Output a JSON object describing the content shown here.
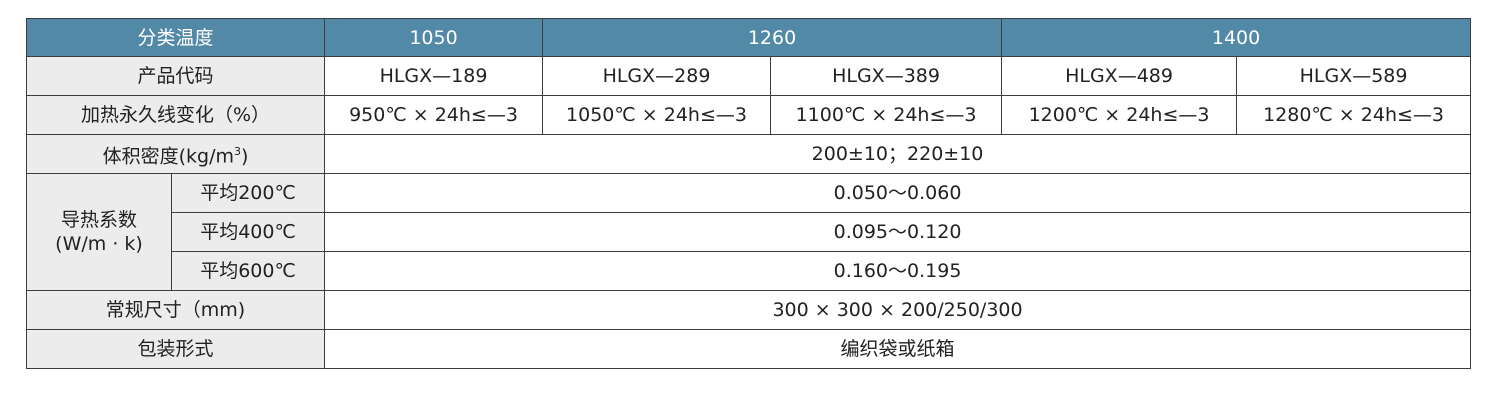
{
  "table": {
    "header": {
      "label": "分类温度",
      "groups": [
        "1050",
        "1260",
        "1400"
      ]
    },
    "product_code": {
      "label": "产品代码",
      "values": [
        "HLGX—189",
        "HLGX—289",
        "HLGX—389",
        "HLGX—489",
        "HLGX—589"
      ]
    },
    "shrinkage": {
      "label": "加热永久线变化（%）",
      "values": [
        "950℃ × 24h≤—3",
        "1050℃ × 24h≤—3",
        "1100℃ × 24h≤—3",
        "1200℃ × 24h≤—3",
        "1280℃ × 24h≤—3"
      ]
    },
    "density": {
      "label_prefix": "体积密度(kg/m",
      "label_sup": "3",
      "label_suffix": ")",
      "value": "200±10；220±10"
    },
    "conductivity": {
      "label_line1": "导热系数",
      "label_line2": "(W/m · k)",
      "rows": [
        {
          "temp": "平均200℃",
          "value": "0.050～0.060"
        },
        {
          "temp": "平均400℃",
          "value": "0.095～0.120"
        },
        {
          "temp": "平均600℃",
          "value": "0.160～0.195"
        }
      ]
    },
    "size": {
      "label": "常规尺寸（mm)",
      "value": "300 × 300 × 200/250/300"
    },
    "packaging": {
      "label": "包装形式",
      "value": "编织袋或纸箱"
    }
  }
}
